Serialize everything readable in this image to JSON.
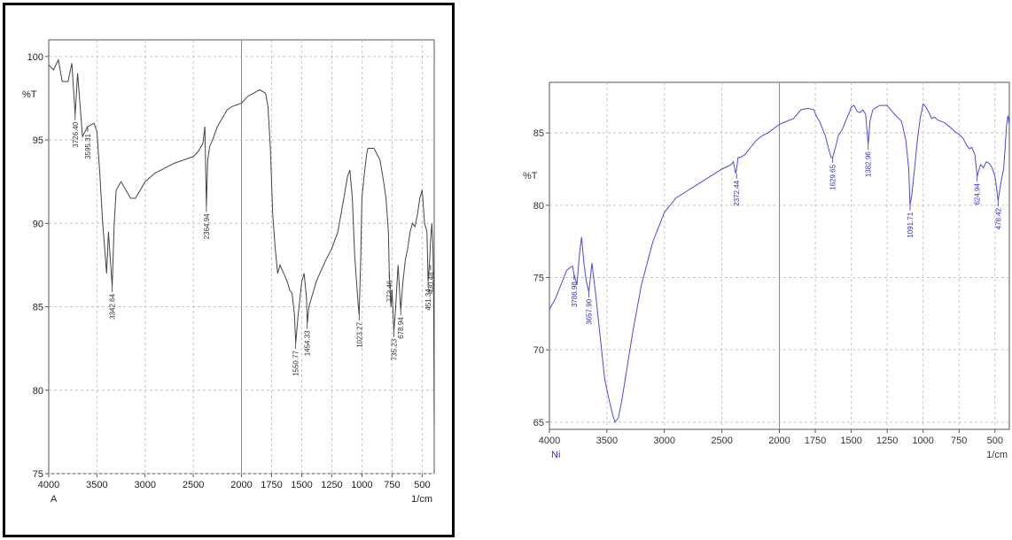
{
  "charts": [
    {
      "ylabel": "%T",
      "xunit": "1/cm",
      "sample": "A",
      "text_color": "#222222",
      "line_color": "#444444",
      "peak_color": "#333333"
    },
    {
      "ylabel": "%T",
      "xunit": "1/cm",
      "sample": "Ni",
      "text_color": "#333333",
      "line_color": "#4a4ae0",
      "peak_color": "#3030c8"
    }
  ],
  "chart_data": [
    {
      "type": "line",
      "title": "",
      "xlabel": "1/cm",
      "ylabel": "%T",
      "xlim": [
        4000,
        400
      ],
      "ylim": [
        75,
        101
      ],
      "x_reversed": true,
      "grid": true,
      "x_ticks": [
        "4000",
        "3500",
        "3000",
        "2500",
        "2000",
        "1750",
        "1500",
        "1250",
        "1000",
        "750",
        "500"
      ],
      "x_tick_values": [
        4000,
        3500,
        3000,
        2500,
        2000,
        1750,
        1500,
        1250,
        1000,
        750,
        500
      ],
      "y_ticks": [
        "75",
        "80",
        "85",
        "90",
        "95",
        "100"
      ],
      "y_tick_values": [
        75,
        80,
        85,
        90,
        95,
        100
      ],
      "series": [
        {
          "x": [
            4000,
            3950,
            3900,
            3860,
            3800,
            3760,
            3726,
            3700,
            3650,
            3596,
            3560,
            3530,
            3500,
            3470,
            3440,
            3400,
            3380,
            3342,
            3320,
            3300,
            3250,
            3200,
            3150,
            3100,
            3050,
            3000,
            2900,
            2800,
            2700,
            2600,
            2500,
            2450,
            2400,
            2380,
            2364,
            2350,
            2330,
            2300,
            2250,
            2200,
            2150,
            2100,
            2000,
            1950,
            1900,
            1850,
            1800,
            1780,
            1760,
            1740,
            1720,
            1700,
            1680,
            1650,
            1620,
            1600,
            1580,
            1560,
            1550,
            1530,
            1500,
            1480,
            1460,
            1454,
            1440,
            1420,
            1400,
            1380,
            1350,
            1300,
            1250,
            1200,
            1150,
            1120,
            1100,
            1080,
            1060,
            1040,
            1030,
            1023,
            1010,
            1000,
            980,
            960,
            950,
            900,
            850,
            820,
            800,
            780,
            773,
            760,
            750,
            735,
            720,
            700,
            678,
            660,
            640,
            620,
            600,
            580,
            560,
            540,
            520,
            500,
            490,
            480,
            460,
            451,
            440,
            430,
            420,
            410,
            405,
            400
          ],
          "y": [
            99.5,
            99.2,
            99.8,
            98.5,
            98.5,
            99.6,
            96.5,
            99.0,
            95.2,
            95.8,
            95.9,
            96.0,
            95.5,
            93.0,
            90.0,
            87.0,
            89.5,
            86.2,
            90.0,
            92.0,
            92.5,
            92.0,
            91.5,
            91.5,
            92.0,
            92.5,
            93.0,
            93.3,
            93.6,
            93.8,
            94.0,
            94.3,
            94.8,
            95.8,
            91.0,
            93.8,
            94.6,
            95.0,
            95.8,
            96.3,
            96.8,
            97.0,
            97.2,
            97.6,
            97.8,
            98.0,
            97.8,
            97.0,
            94.5,
            90.5,
            88.5,
            87.0,
            87.5,
            87.0,
            86.5,
            86.0,
            85.8,
            84.5,
            82.8,
            84.5,
            86.5,
            87.0,
            85.5,
            84.0,
            85.0,
            85.5,
            86.0,
            86.5,
            87.0,
            87.8,
            88.5,
            89.5,
            91.5,
            92.8,
            93.2,
            91.5,
            88.0,
            86.0,
            85.0,
            84.5,
            88.0,
            91.5,
            93.0,
            94.2,
            94.5,
            94.5,
            93.8,
            92.5,
            91.5,
            89.5,
            87.0,
            85.0,
            86.0,
            83.5,
            85.0,
            87.5,
            84.8,
            86.5,
            87.8,
            88.5,
            89.5,
            90.0,
            89.8,
            90.5,
            91.5,
            92.0,
            91.0,
            90.0,
            89.5,
            86.5,
            87.5,
            89.0,
            90.0,
            88.5,
            86.0,
            78.0
          ]
        }
      ],
      "peak_labels": [
        {
          "x": 3726,
          "y": 96.5,
          "text": "3726.40"
        },
        {
          "x": 3596,
          "y": 95.8,
          "text": "3595.31"
        },
        {
          "x": 3342,
          "y": 86.2,
          "text": "3342.64"
        },
        {
          "x": 2364,
          "y": 91.0,
          "text": "2364.94"
        },
        {
          "x": 1550,
          "y": 82.8,
          "text": "1550.77"
        },
        {
          "x": 1454,
          "y": 84.0,
          "text": "1454.33"
        },
        {
          "x": 1023,
          "y": 84.5,
          "text": "1023.27"
        },
        {
          "x": 773,
          "y": 87.0,
          "text": "773.46"
        },
        {
          "x": 735,
          "y": 83.5,
          "text": "735.23"
        },
        {
          "x": 678,
          "y": 84.8,
          "text": "678.94"
        },
        {
          "x": 451,
          "y": 86.5,
          "text": "451.34"
        },
        {
          "x": 430,
          "y": 87.5,
          "text": "430.48"
        }
      ]
    },
    {
      "type": "line",
      "title": "",
      "xlabel": "1/cm",
      "ylabel": "%T",
      "xlim": [
        4000,
        400
      ],
      "ylim": [
        64.5,
        88.5
      ],
      "x_reversed": true,
      "grid": true,
      "x_ticks": [
        "4000",
        "3500",
        "3000",
        "2500",
        "2000",
        "1750",
        "1500",
        "1250",
        "1000",
        "750",
        "500"
      ],
      "x_tick_values": [
        4000,
        3500,
        3000,
        2500,
        2000,
        1750,
        1500,
        1250,
        1000,
        750,
        500
      ],
      "y_ticks": [
        "65",
        "70",
        "75",
        "80",
        "85"
      ],
      "y_tick_values": [
        65,
        70,
        75,
        80,
        85
      ],
      "series": [
        {
          "x": [
            4000,
            3950,
            3900,
            3850,
            3800,
            3786,
            3760,
            3740,
            3720,
            3700,
            3680,
            3657,
            3630,
            3600,
            3560,
            3520,
            3480,
            3450,
            3430,
            3400,
            3370,
            3330,
            3280,
            3200,
            3100,
            3000,
            2900,
            2800,
            2700,
            2600,
            2500,
            2420,
            2400,
            2380,
            2372,
            2360,
            2340,
            2300,
            2250,
            2200,
            2150,
            2100,
            2050,
            2000,
            1950,
            1900,
            1850,
            1800,
            1760,
            1740,
            1720,
            1700,
            1680,
            1660,
            1640,
            1629,
            1610,
            1590,
            1560,
            1540,
            1510,
            1500,
            1480,
            1460,
            1440,
            1420,
            1400,
            1382,
            1370,
            1350,
            1320,
            1300,
            1250,
            1200,
            1150,
            1120,
            1100,
            1091,
            1080,
            1060,
            1040,
            1020,
            1000,
            980,
            960,
            940,
            920,
            900,
            850,
            800,
            780,
            750,
            720,
            700,
            680,
            660,
            640,
            624,
            610,
            600,
            580,
            560,
            540,
            520,
            500,
            490,
            478,
            460,
            440,
            430,
            420,
            410,
            400
          ],
          "y": [
            72.8,
            73.5,
            74.5,
            75.5,
            75.8,
            75.2,
            74.5,
            76.5,
            77.8,
            76.0,
            74.8,
            74.0,
            76.0,
            74.0,
            71.0,
            68.0,
            66.5,
            65.5,
            65.0,
            65.3,
            66.5,
            68.5,
            71.0,
            74.5,
            77.5,
            79.5,
            80.5,
            81.0,
            81.5,
            82.0,
            82.5,
            82.8,
            83.0,
            82.2,
            82.5,
            83.3,
            83.3,
            83.5,
            84.0,
            84.5,
            84.8,
            85.0,
            85.3,
            85.6,
            85.8,
            86.0,
            86.6,
            86.7,
            86.6,
            86.1,
            85.8,
            85.3,
            84.8,
            84.0,
            83.3,
            83.3,
            84.0,
            84.8,
            85.3,
            85.8,
            86.5,
            86.8,
            86.9,
            86.5,
            86.4,
            86.6,
            86.3,
            84.2,
            85.8,
            86.6,
            86.8,
            86.9,
            86.9,
            86.3,
            85.8,
            84.5,
            82.5,
            80.0,
            80.6,
            82.5,
            84.5,
            86.0,
            87.0,
            86.8,
            86.4,
            86.0,
            86.1,
            85.9,
            85.7,
            85.3,
            85.1,
            84.9,
            84.6,
            84.2,
            83.9,
            84.0,
            83.5,
            82.0,
            82.5,
            82.8,
            82.6,
            83.0,
            82.9,
            82.6,
            82.0,
            81.3,
            80.3,
            81.5,
            82.5,
            83.8,
            85.5,
            86.2,
            85.6
          ]
        }
      ],
      "peak_labels": [
        {
          "x": 3786,
          "y": 75.2,
          "text": "3786.98"
        },
        {
          "x": 3657,
          "y": 74.0,
          "text": "3657.90"
        },
        {
          "x": 2372,
          "y": 82.2,
          "text": "2372.44"
        },
        {
          "x": 1629,
          "y": 83.3,
          "text": "1629.65"
        },
        {
          "x": 1382,
          "y": 84.2,
          "text": "1382.96"
        },
        {
          "x": 1091,
          "y": 80.0,
          "text": "1091.71"
        },
        {
          "x": 624,
          "y": 82.0,
          "text": "624.94"
        },
        {
          "x": 478,
          "y": 80.3,
          "text": "478.42"
        }
      ]
    }
  ]
}
